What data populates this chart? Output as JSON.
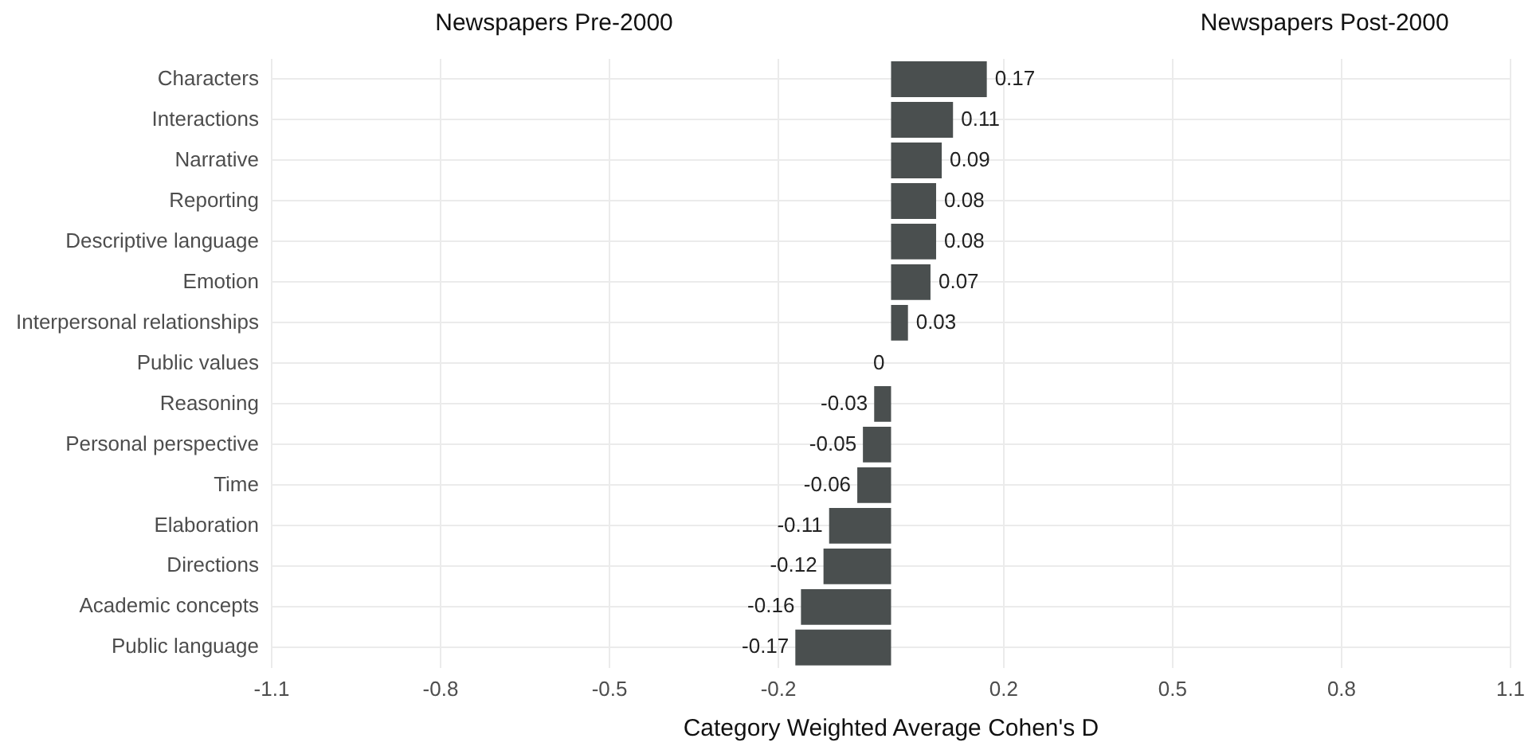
{
  "chart_data": {
    "type": "bar",
    "orientation": "horizontal",
    "categories": [
      "Characters",
      "Interactions",
      "Narrative",
      "Reporting",
      "Descriptive language",
      "Emotion",
      "Interpersonal relationships",
      "Public values",
      "Reasoning",
      "Personal perspective",
      "Time",
      "Elaboration",
      "Directions",
      "Academic concepts",
      "Public language"
    ],
    "values": [
      0.17,
      0.11,
      0.09,
      0.08,
      0.08,
      0.07,
      0.03,
      0,
      -0.03,
      -0.05,
      -0.06,
      -0.11,
      -0.12,
      -0.16,
      -0.17
    ],
    "color": "#4a4f4f",
    "xlabel": "Category Weighted Average Cohen's D",
    "annotations": [
      "Newspapers Pre-2000",
      "Newspapers Post-2000"
    ],
    "xlim": [
      -1.1,
      1.1
    ],
    "xticks": [
      -1.1,
      -0.8,
      -0.5,
      -0.2,
      0.2,
      0.5,
      0.8,
      1.1
    ],
    "grid": true,
    "data_labels": true,
    "legend": false
  }
}
